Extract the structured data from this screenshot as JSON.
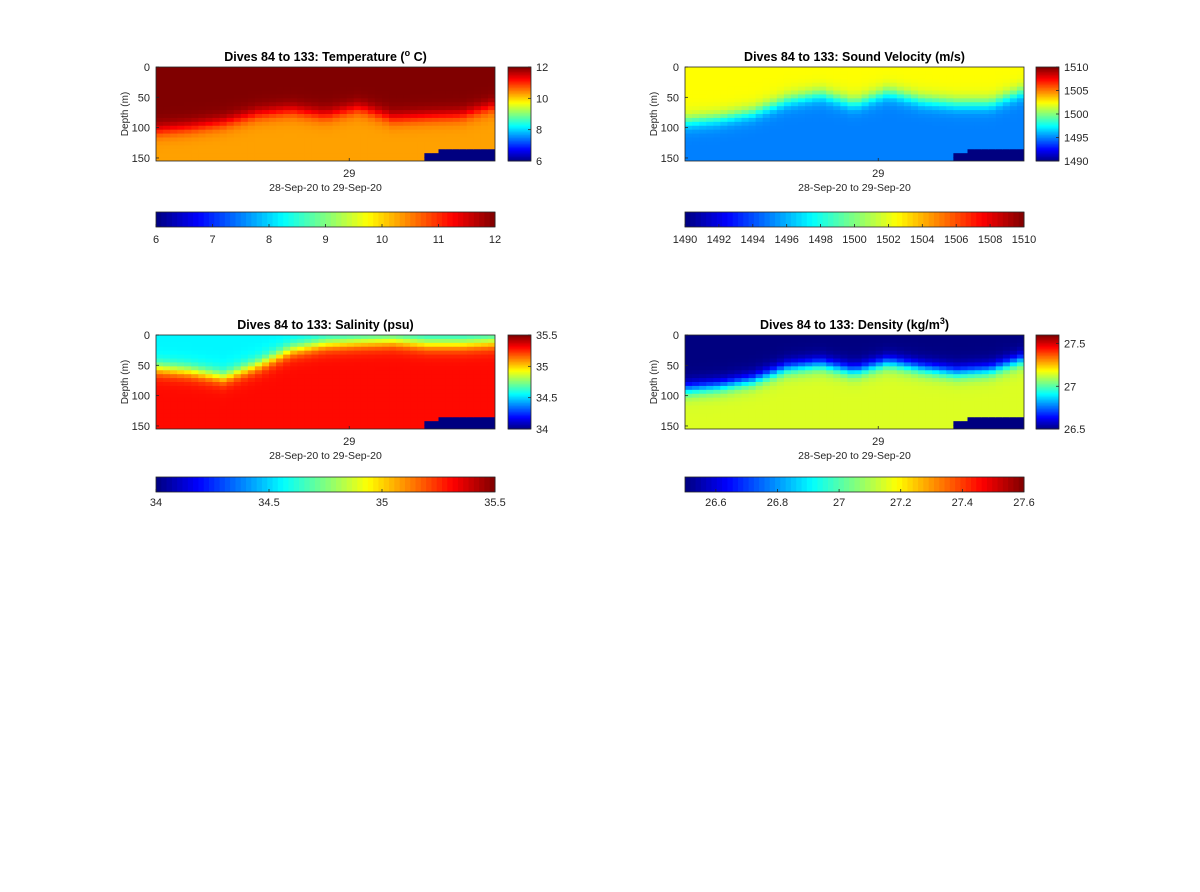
{
  "chart_data": [
    {
      "type": "heatmap",
      "title": "Dives 84 to 133: Temperature (",
      "title_sup": "o",
      "title_after": " C)",
      "ylabel": "Depth (m)",
      "yticks": [
        "0",
        "50",
        "100",
        "150"
      ],
      "ylim": [
        0,
        155
      ],
      "yreversed": true,
      "xtick_label": "29",
      "xlabel": "28-Sep-20 to 29-Sep-20",
      "clim": [
        6,
        12
      ],
      "colorbar_side_ticks": [
        "6",
        "8",
        "10",
        "12"
      ],
      "colorbar_bottom_ticks": [
        "6",
        "7",
        "8",
        "9",
        "10",
        "11",
        "12"
      ],
      "colormap": "jet",
      "mixed_layer_value": 12.0,
      "deep_value": 10.3,
      "x_fraction": [
        0,
        0.1,
        0.2,
        0.3,
        0.4,
        0.5,
        0.6,
        0.7,
        0.8,
        0.9,
        1.0
      ],
      "interface_depth_m": [
        105,
        100,
        92,
        78,
        72,
        80,
        68,
        85,
        82,
        80,
        65
      ],
      "seafloor_depth_m": [
        null,
        null,
        null,
        null,
        null,
        null,
        null,
        null,
        140,
        137,
        135
      ]
    },
    {
      "type": "heatmap",
      "title": "Dives 84 to 133: Sound Velocity (m/s)",
      "title_sup": "",
      "title_after": "",
      "ylabel": "Depth (m)",
      "yticks": [
        "0",
        "50",
        "100",
        "150"
      ],
      "ylim": [
        0,
        155
      ],
      "yreversed": true,
      "xtick_label": "29",
      "xlabel": "28-Sep-20 to 29-Sep-20",
      "clim": [
        1490,
        1510
      ],
      "colorbar_side_ticks": [
        "1490",
        "1495",
        "1500",
        "1505",
        "1510"
      ],
      "colorbar_bottom_ticks": [
        "1490",
        "1492",
        "1494",
        "1496",
        "1498",
        "1500",
        "1502",
        "1504",
        "1506",
        "1508",
        "1510"
      ],
      "colormap": "jet",
      "mixed_layer_value": 1502.5,
      "deep_value": 1495.0,
      "x_fraction": [
        0,
        0.1,
        0.2,
        0.3,
        0.4,
        0.5,
        0.6,
        0.7,
        0.8,
        0.9,
        1.0
      ],
      "interface_depth_m": [
        90,
        85,
        75,
        55,
        45,
        60,
        42,
        55,
        60,
        60,
        40
      ],
      "seafloor_depth_m": [
        null,
        null,
        null,
        null,
        null,
        null,
        null,
        null,
        140,
        137,
        135
      ]
    },
    {
      "type": "heatmap",
      "title": "Dives 84 to 133: Salinity (psu)",
      "title_sup": "",
      "title_after": "",
      "ylabel": "Depth (m)",
      "yticks": [
        "0",
        "50",
        "100",
        "150"
      ],
      "ylim": [
        0,
        155
      ],
      "yreversed": true,
      "xtick_label": "29",
      "xlabel": "28-Sep-20 to 29-Sep-20",
      "clim": [
        34,
        35.5
      ],
      "colorbar_side_ticks": [
        "34",
        "34.5",
        "35",
        "35.5"
      ],
      "colorbar_bottom_ticks": [
        "34",
        "34.5",
        "35",
        "35.5"
      ],
      "colormap": "jet",
      "mixed_layer_value": 34.55,
      "deep_value": 35.3,
      "x_fraction": [
        0,
        0.1,
        0.2,
        0.3,
        0.4,
        0.5,
        0.6,
        0.7,
        0.8,
        0.9,
        1.0
      ],
      "interface_depth_m": [
        55,
        60,
        70,
        50,
        25,
        15,
        12,
        10,
        15,
        15,
        12
      ],
      "seafloor_depth_m": [
        null,
        null,
        null,
        null,
        null,
        null,
        null,
        null,
        140,
        137,
        135
      ]
    },
    {
      "type": "heatmap",
      "title": "Dives 84 to 133: Density (kg/m",
      "title_sup": "3",
      "title_after": ")",
      "ylabel": "Depth (m)",
      "yticks": [
        "0",
        "50",
        "100",
        "150"
      ],
      "ylim": [
        0,
        155
      ],
      "yreversed": true,
      "xtick_label": "29",
      "xlabel": "28-Sep-20 to 29-Sep-20",
      "clim": [
        26.5,
        27.6
      ],
      "colorbar_side_ticks": [
        "26.5",
        "27",
        "27.5"
      ],
      "colorbar_bottom_ticks": [
        "26.6",
        "26.8",
        "27",
        "27.2",
        "27.4",
        "27.6"
      ],
      "colormap": "jet",
      "mixed_layer_value": 26.5,
      "deep_value": 27.15,
      "x_fraction": [
        0,
        0.1,
        0.2,
        0.3,
        0.4,
        0.5,
        0.6,
        0.7,
        0.8,
        0.9,
        1.0
      ],
      "interface_depth_m": [
        90,
        85,
        75,
        55,
        48,
        60,
        45,
        55,
        62,
        58,
        40
      ],
      "seafloor_depth_m": [
        null,
        null,
        null,
        null,
        null,
        null,
        null,
        null,
        140,
        137,
        135
      ]
    }
  ]
}
